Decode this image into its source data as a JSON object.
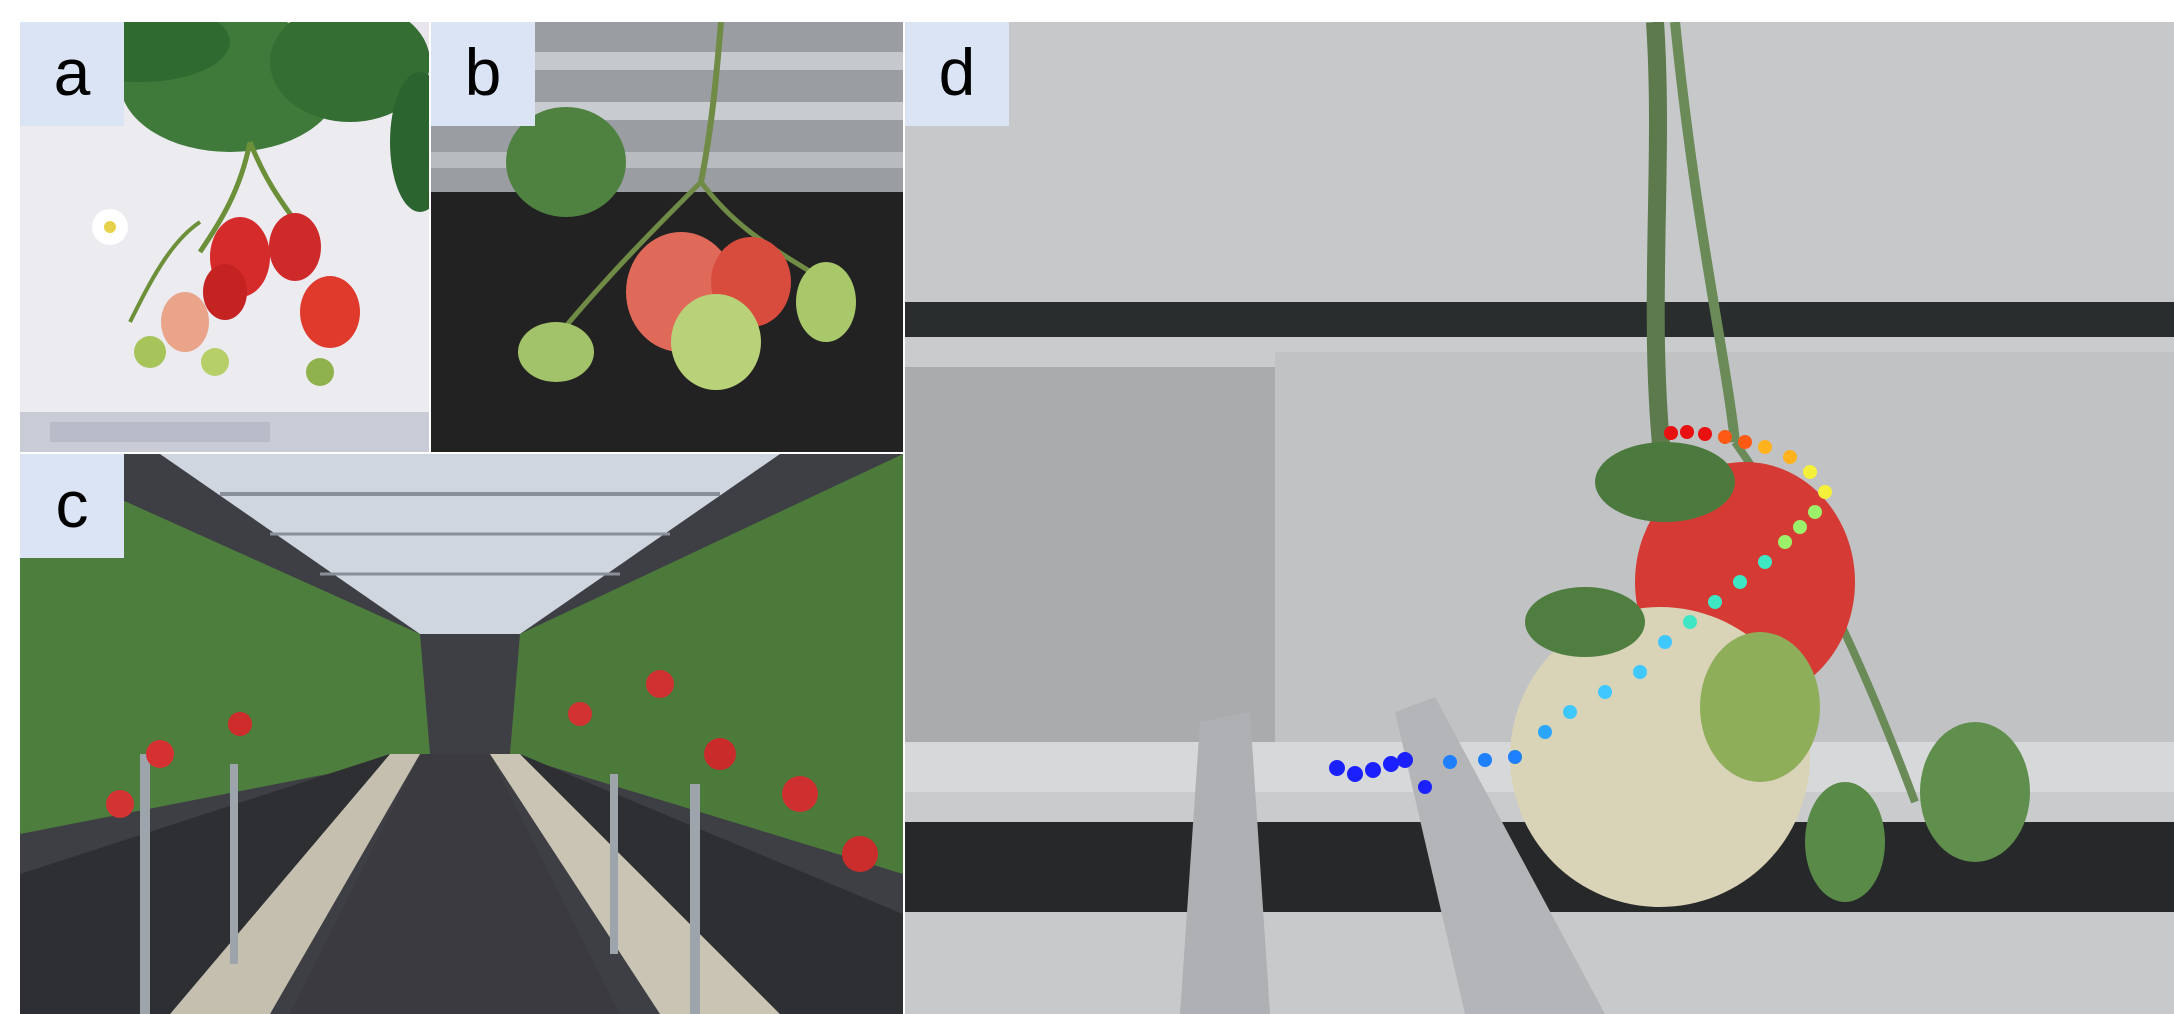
{
  "panels": [
    {
      "id": "a",
      "label": "a"
    },
    {
      "id": "b",
      "label": "b"
    },
    {
      "id": "c",
      "label": "c"
    },
    {
      "id": "d",
      "label": "d"
    }
  ],
  "trajectory": {
    "description_colors": [
      "#1a20ff",
      "#1e80ff",
      "#3ec8ff",
      "#3fe6c4",
      "#9cf06a",
      "#f5f03a",
      "#ffb21e",
      "#ff5a14",
      "#e81010"
    ]
  }
}
